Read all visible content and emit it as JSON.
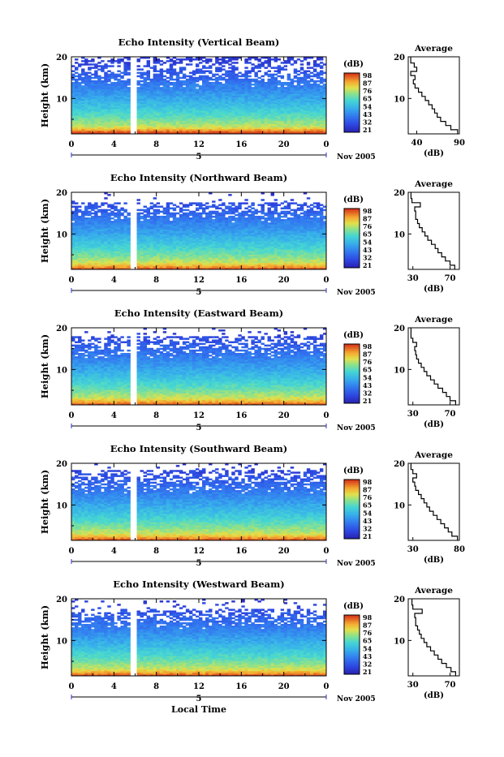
{
  "figure": {
    "x_axis_label": "Local Time",
    "date_label": "5",
    "month_label": "Nov 2005",
    "x_ticks": [
      "0",
      "4",
      "8",
      "12",
      "16",
      "20",
      "0"
    ],
    "y_label": "Height (km)",
    "y_ticks": [
      "10",
      "20"
    ],
    "colorbar_unit": "(dB)",
    "colorbar_ticks": [
      "98",
      "87",
      "76",
      "65",
      "54",
      "43",
      "32",
      "21"
    ],
    "colorbar_colors": [
      "#2a2fc4",
      "#3f6ee6",
      "#3fa3ef",
      "#48d3da",
      "#8de08a",
      "#e6e04a",
      "#f5a032",
      "#d83a1c"
    ],
    "avg_title": "Average",
    "avg_xlabel": "(dB)"
  },
  "chart_data": [
    {
      "type": "heatmap",
      "title": "Echo Intensity (Vertical Beam)",
      "ylabel": "Height (km)",
      "xlabel": "",
      "xlim": [
        0,
        24
      ],
      "ylim": [
        1.5,
        20
      ],
      "colorbar": {
        "label": "(dB)",
        "range": [
          21,
          98
        ]
      },
      "gap_time": 5.8,
      "echo_top": 20,
      "surface_boost": 1.0,
      "average_profile": {
        "title": "Average",
        "xlabel": "(dB)",
        "xlim": [
          30,
          90
        ],
        "xticks": [
          "40",
          "90"
        ],
        "height": [
          2,
          3,
          4,
          5,
          6,
          7,
          8,
          9,
          10,
          11,
          12,
          13,
          14,
          15,
          16,
          17,
          18,
          19,
          20
        ],
        "values": [
          88,
          80,
          74,
          68,
          64,
          61,
          58,
          54,
          50,
          46,
          42,
          38,
          36,
          38,
          33,
          40,
          37,
          33,
          33
        ]
      }
    },
    {
      "type": "heatmap",
      "title": "Echo Intensity (Northward Beam)",
      "ylabel": "Height (km)",
      "xlabel": "",
      "xlim": [
        0,
        24
      ],
      "ylim": [
        1.5,
        20
      ],
      "colorbar": {
        "label": "(dB)",
        "range": [
          21,
          98
        ]
      },
      "gap_time": 5.8,
      "echo_top": 17.5,
      "surface_boost": 0.55,
      "average_profile": {
        "title": "Average",
        "xlabel": "(dB)",
        "xlim": [
          25,
          80
        ],
        "xticks": [
          "30",
          "70"
        ],
        "height": [
          2,
          3,
          4,
          5,
          6,
          7,
          8,
          9,
          10,
          11,
          12,
          13,
          14,
          15,
          16,
          17,
          18,
          19,
          20
        ],
        "values": [
          75,
          70,
          65,
          61,
          57,
          54,
          50,
          46,
          43,
          40,
          37,
          35,
          33,
          33,
          32,
          38,
          29,
          28,
          28
        ]
      }
    },
    {
      "type": "heatmap",
      "title": "Echo Intensity (Eastward Beam)",
      "ylabel": "Height (km)",
      "xlabel": "",
      "xlim": [
        0,
        24
      ],
      "ylim": [
        1.5,
        20
      ],
      "colorbar": {
        "label": "(dB)",
        "range": [
          21,
          98
        ]
      },
      "gap_time": 5.8,
      "echo_top": 18,
      "surface_boost": 0.55,
      "average_profile": {
        "title": "Average",
        "xlabel": "(dB)",
        "xlim": [
          25,
          80
        ],
        "xticks": [
          "30",
          "70"
        ],
        "height": [
          2,
          3,
          4,
          5,
          6,
          7,
          8,
          9,
          10,
          11,
          12,
          13,
          14,
          15,
          16,
          17,
          18,
          19,
          20
        ],
        "values": [
          76,
          70,
          66,
          62,
          57,
          53,
          49,
          45,
          42,
          39,
          36,
          34,
          33,
          32,
          34,
          30,
          28,
          28,
          28
        ]
      }
    },
    {
      "type": "heatmap",
      "title": "Echo Intensity (Southward Beam)",
      "ylabel": "Height (km)",
      "xlabel": "",
      "xlim": [
        0,
        24
      ],
      "ylim": [
        1.5,
        20
      ],
      "colorbar": {
        "label": "(dB)",
        "range": [
          21,
          98
        ]
      },
      "gap_time": 5.8,
      "echo_top": 18.3,
      "surface_boost": 0.55,
      "average_profile": {
        "title": "Average",
        "xlabel": "(dB)",
        "xlim": [
          25,
          80
        ],
        "xticks": [
          "30",
          "80"
        ],
        "height": [
          2,
          3,
          4,
          5,
          6,
          7,
          8,
          9,
          10,
          11,
          12,
          13,
          14,
          15,
          16,
          17,
          18,
          19,
          20
        ],
        "values": [
          78,
          72,
          68,
          64,
          60,
          56,
          52,
          48,
          45,
          42,
          39,
          36,
          33,
          32,
          30,
          34,
          30,
          28,
          28
        ]
      }
    },
    {
      "type": "heatmap",
      "title": "Echo Intensity (Westward Beam)",
      "ylabel": "Height (km)",
      "xlabel": "Local Time",
      "xlim": [
        0,
        24
      ],
      "ylim": [
        1.5,
        20
      ],
      "colorbar": {
        "label": "(dB)",
        "range": [
          21,
          98
        ]
      },
      "gap_time": 5.8,
      "echo_top": 17.5,
      "surface_boost": 0.6,
      "average_profile": {
        "title": "Average",
        "xlabel": "(dB)",
        "xlim": [
          25,
          80
        ],
        "xticks": [
          "30",
          "70"
        ],
        "height": [
          2,
          3,
          4,
          5,
          6,
          7,
          8,
          9,
          10,
          11,
          12,
          13,
          14,
          15,
          16,
          17,
          18,
          19,
          20
        ],
        "values": [
          76,
          71,
          66,
          61,
          57,
          53,
          49,
          45,
          42,
          39,
          37,
          35,
          33,
          33,
          32,
          40,
          30,
          29,
          29
        ]
      }
    }
  ]
}
